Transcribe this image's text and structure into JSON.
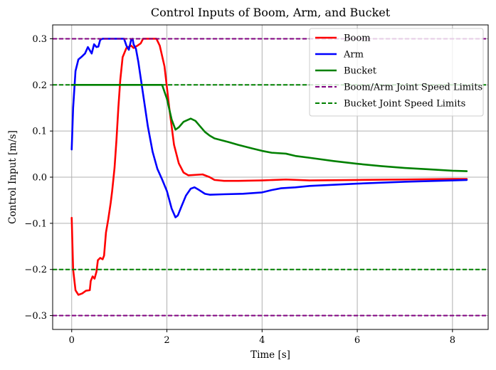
{
  "chart_data": {
    "type": "line",
    "title": "Control Inputs of Boom, Arm, and Bucket",
    "xlabel": "Time [s]",
    "ylabel": "Control Input [m/s]",
    "xlim": [
      -0.4,
      8.75
    ],
    "ylim": [
      -0.33,
      0.33
    ],
    "xticks": [
      0,
      2,
      4,
      6,
      8
    ],
    "xtick_labels": [
      "0",
      "2",
      "4",
      "6",
      "8"
    ],
    "yticks": [
      -0.3,
      -0.2,
      -0.1,
      0.0,
      0.1,
      0.2,
      0.3
    ],
    "ytick_labels": [
      "−0.3",
      "−0.2",
      "−0.1",
      "0.0",
      "0.1",
      "0.2",
      "0.3"
    ],
    "grid": true,
    "legend_position": "top-right",
    "series": [
      {
        "name": "Boom",
        "color": "#ff0000",
        "style": "solid",
        "points": [
          [
            0.0,
            -0.088
          ],
          [
            0.03,
            -0.2
          ],
          [
            0.08,
            -0.245
          ],
          [
            0.14,
            -0.255
          ],
          [
            0.22,
            -0.252
          ],
          [
            0.3,
            -0.246
          ],
          [
            0.38,
            -0.245
          ],
          [
            0.4,
            -0.225
          ],
          [
            0.44,
            -0.215
          ],
          [
            0.48,
            -0.22
          ],
          [
            0.52,
            -0.205
          ],
          [
            0.55,
            -0.18
          ],
          [
            0.6,
            -0.175
          ],
          [
            0.65,
            -0.178
          ],
          [
            0.68,
            -0.17
          ],
          [
            0.72,
            -0.12
          ],
          [
            0.77,
            -0.09
          ],
          [
            0.82,
            -0.055
          ],
          [
            0.85,
            -0.03
          ],
          [
            0.9,
            0.02
          ],
          [
            0.94,
            0.08
          ],
          [
            0.98,
            0.15
          ],
          [
            1.02,
            0.21
          ],
          [
            1.07,
            0.26
          ],
          [
            1.15,
            0.28
          ],
          [
            1.25,
            0.285
          ],
          [
            1.3,
            0.28
          ],
          [
            1.38,
            0.285
          ],
          [
            1.45,
            0.29
          ],
          [
            1.5,
            0.3
          ],
          [
            1.7,
            0.3
          ],
          [
            1.78,
            0.3
          ],
          [
            1.85,
            0.285
          ],
          [
            1.95,
            0.24
          ],
          [
            2.05,
            0.15
          ],
          [
            2.15,
            0.07
          ],
          [
            2.25,
            0.03
          ],
          [
            2.35,
            0.01
          ],
          [
            2.45,
            0.004
          ],
          [
            2.6,
            0.005
          ],
          [
            2.75,
            0.006
          ],
          [
            2.9,
            0.0
          ],
          [
            3.0,
            -0.006
          ],
          [
            3.2,
            -0.008
          ],
          [
            3.5,
            -0.008
          ],
          [
            4.0,
            -0.007
          ],
          [
            4.5,
            -0.005
          ],
          [
            5.0,
            -0.007
          ],
          [
            6.0,
            -0.006
          ],
          [
            7.0,
            -0.005
          ],
          [
            8.0,
            -0.004
          ],
          [
            8.3,
            -0.004
          ]
        ]
      },
      {
        "name": "Arm",
        "color": "#0000ff",
        "style": "solid",
        "points": [
          [
            0.0,
            0.06
          ],
          [
            0.03,
            0.15
          ],
          [
            0.08,
            0.23
          ],
          [
            0.14,
            0.255
          ],
          [
            0.22,
            0.262
          ],
          [
            0.28,
            0.268
          ],
          [
            0.34,
            0.282
          ],
          [
            0.38,
            0.275
          ],
          [
            0.42,
            0.268
          ],
          [
            0.47,
            0.288
          ],
          [
            0.52,
            0.282
          ],
          [
            0.56,
            0.283
          ],
          [
            0.6,
            0.298
          ],
          [
            0.65,
            0.3
          ],
          [
            1.1,
            0.3
          ],
          [
            1.15,
            0.285
          ],
          [
            1.2,
            0.276
          ],
          [
            1.25,
            0.298
          ],
          [
            1.28,
            0.3
          ],
          [
            1.3,
            0.288
          ],
          [
            1.35,
            0.278
          ],
          [
            1.4,
            0.25
          ],
          [
            1.5,
            0.18
          ],
          [
            1.6,
            0.11
          ],
          [
            1.7,
            0.055
          ],
          [
            1.8,
            0.018
          ],
          [
            1.9,
            -0.005
          ],
          [
            2.0,
            -0.03
          ],
          [
            2.1,
            -0.068
          ],
          [
            2.18,
            -0.087
          ],
          [
            2.23,
            -0.083
          ],
          [
            2.3,
            -0.065
          ],
          [
            2.4,
            -0.04
          ],
          [
            2.5,
            -0.025
          ],
          [
            2.58,
            -0.022
          ],
          [
            2.68,
            -0.028
          ],
          [
            2.8,
            -0.036
          ],
          [
            2.9,
            -0.038
          ],
          [
            3.2,
            -0.037
          ],
          [
            3.6,
            -0.036
          ],
          [
            4.0,
            -0.033
          ],
          [
            4.2,
            -0.028
          ],
          [
            4.4,
            -0.024
          ],
          [
            4.7,
            -0.022
          ],
          [
            5.0,
            -0.019
          ],
          [
            6.0,
            -0.014
          ],
          [
            7.0,
            -0.01
          ],
          [
            8.0,
            -0.007
          ],
          [
            8.3,
            -0.006
          ]
        ]
      },
      {
        "name": "Bucket",
        "color": "#008000",
        "style": "solid",
        "points": [
          [
            0.0,
            0.2
          ],
          [
            1.9,
            0.2
          ],
          [
            2.0,
            0.17
          ],
          [
            2.1,
            0.125
          ],
          [
            2.18,
            0.103
          ],
          [
            2.25,
            0.108
          ],
          [
            2.35,
            0.12
          ],
          [
            2.5,
            0.127
          ],
          [
            2.6,
            0.122
          ],
          [
            2.7,
            0.11
          ],
          [
            2.8,
            0.098
          ],
          [
            2.9,
            0.09
          ],
          [
            3.0,
            0.084
          ],
          [
            3.3,
            0.076
          ],
          [
            3.5,
            0.07
          ],
          [
            3.8,
            0.062
          ],
          [
            4.0,
            0.057
          ],
          [
            4.2,
            0.053
          ],
          [
            4.5,
            0.051
          ],
          [
            4.7,
            0.046
          ],
          [
            5.0,
            0.042
          ],
          [
            5.5,
            0.035
          ],
          [
            6.0,
            0.029
          ],
          [
            6.5,
            0.024
          ],
          [
            7.0,
            0.02
          ],
          [
            7.5,
            0.017
          ],
          [
            8.0,
            0.014
          ],
          [
            8.3,
            0.013
          ]
        ]
      },
      {
        "name": "Boom/Arm Joint Speed Limits",
        "color": "#800080",
        "style": "dashed",
        "hlines": [
          0.3,
          -0.3
        ]
      },
      {
        "name": "Bucket Joint Speed Limits",
        "color": "#008000",
        "style": "dashed",
        "hlines": [
          0.2,
          -0.2
        ]
      }
    ]
  }
}
